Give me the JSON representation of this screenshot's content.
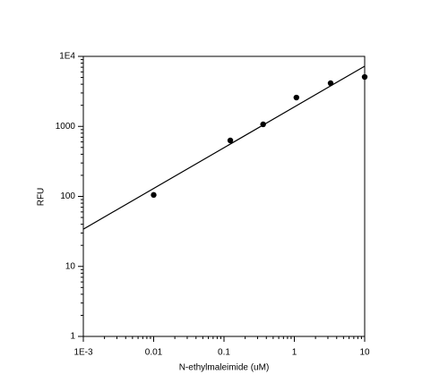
{
  "chart_data": {
    "type": "scatter",
    "x_label": "N-ethylmaleimide (uM)",
    "y_label": "RFU",
    "log_x": true,
    "log_y": true,
    "color": "#000000",
    "series": [
      {
        "color": "#000000",
        "x": [
          0.01,
          0.123,
          0.36,
          1.07,
          3.28,
          10
        ],
        "values": [
          105,
          630,
          1070,
          2580,
          4140,
          5080
        ]
      },
      {
        "type": "line",
        "color": "#000000",
        "x": [
          0.001,
          10
        ],
        "values": [
          34,
          7240
        ]
      }
    ],
    "xlim": [
      0.001,
      10
    ],
    "ylim": [
      1,
      10000
    ],
    "xticks": [
      {
        "value": 0.001,
        "label": "1E-3"
      },
      0.01,
      0.1,
      1,
      10
    ],
    "yticks": [
      1,
      10,
      100,
      1000,
      {
        "value": 10000,
        "label": "1E4"
      }
    ]
  }
}
